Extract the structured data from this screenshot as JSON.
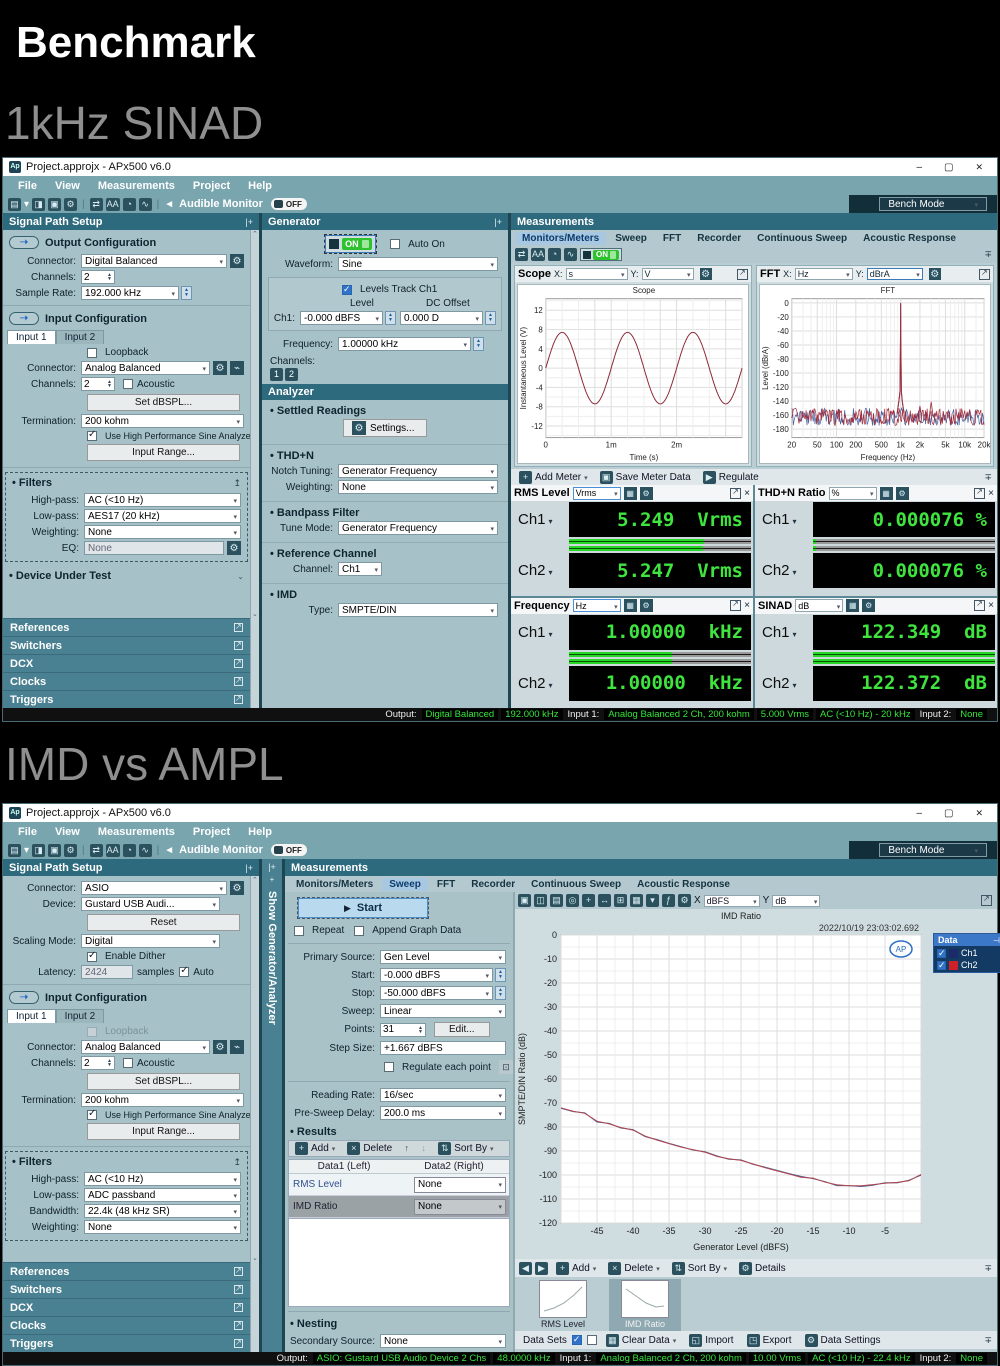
{
  "page": {
    "title": "Benchmark",
    "heading1": "1kHz SINAD",
    "heading2": "IMD vs AMPL"
  },
  "icons": {
    "wintool": [
      {
        "text": "▤",
        "name": "new-project-icon",
        "cls": "ti"
      },
      {
        "text": "▾",
        "name": "chevron-down-icon",
        "cls": "tiplain"
      },
      {
        "text": "◨",
        "name": "open-project-icon",
        "cls": "ti"
      },
      {
        "text": "▣",
        "name": "save-project-icon",
        "cls": "ti"
      },
      {
        "text": "⚙",
        "name": "settings-icon",
        "cls": "ti"
      },
      {
        "text": "|",
        "name": "separator",
        "cls": "sep"
      },
      {
        "text": "⇄",
        "name": "signal-path-icon",
        "cls": "ti"
      },
      {
        "text": "AA",
        "name": "sequence-icon",
        "cls": "ti"
      },
      {
        "text": "◔",
        "name": "clock-icon",
        "cls": "ti"
      },
      {
        "text": "∿",
        "name": "monitors-icon",
        "cls": "ti"
      },
      {
        "text": "|",
        "name": "separator",
        "cls": "sep"
      },
      {
        "text": "◄",
        "name": "speaker-icon",
        "cls": "tiplain"
      }
    ],
    "meastool": [
      {
        "text": "⇄",
        "name": "signal-path-icon",
        "cls": "ti"
      },
      {
        "text": "AA",
        "name": "sequence-icon",
        "cls": "ti"
      },
      {
        "text": "◔",
        "name": "clock-icon",
        "cls": "ti"
      },
      {
        "text": "∿",
        "name": "monitors-icon",
        "cls": "ti"
      }
    ],
    "graphtool": [
      {
        "text": "▣",
        "name": "save-graph-icon",
        "cls": "ti"
      },
      {
        "text": "◫",
        "name": "copy-graph-icon",
        "cls": "ti"
      },
      {
        "text": "▤",
        "name": "print-icon",
        "cls": "ti"
      },
      {
        "text": "◎",
        "name": "zoom-icon",
        "cls": "ti"
      },
      {
        "text": "+",
        "name": "pan-icon",
        "cls": "ti"
      },
      {
        "text": "↔",
        "name": "fit-icon",
        "cls": "ti"
      },
      {
        "text": "⊞",
        "name": "axes-icon",
        "cls": "ti"
      },
      {
        "text": "▦",
        "name": "data-table-icon",
        "cls": "ti"
      },
      {
        "text": "▾",
        "name": "cursors-icon",
        "cls": "ti"
      },
      {
        "text": "ƒ",
        "name": "function-icon",
        "cls": "ti"
      },
      {
        "text": "⚙",
        "name": "graph-settings-icon",
        "cls": "ti"
      }
    ],
    "nav": [
      {
        "text": "◀",
        "name": "first-result-icon",
        "cls": "ti"
      },
      {
        "text": "▶",
        "name": "last-result-icon",
        "cls": "ti"
      }
    ]
  },
  "w1": {
    "title": "Project.approjx - APx500 v6.0",
    "menus": [
      "File",
      "View",
      "Measurements",
      "Project",
      "Help"
    ],
    "tb": {
      "audible": "Audible Monitor",
      "off": "OFF",
      "bench": "Bench Mode"
    },
    "sps": {
      "header": "Signal Path Setup",
      "out_title": "Output Configuration",
      "connector_l": "Connector:",
      "connector_v": "Digital Balanced",
      "channels_l": "Channels:",
      "channels_v": "2",
      "samplerate_l": "Sample Rate:",
      "samplerate_v": "192.000 kHz",
      "in_title": "Input Configuration",
      "tab1": "Input 1",
      "tab2": "Input 2",
      "loopback": "Loopback",
      "in_connector_l": "Connector:",
      "in_connector_v": "Analog Balanced",
      "in_channels_l": "Channels:",
      "in_channels_v": "2",
      "acoustic": "Acoustic",
      "set_dbspl": "Set dBSPL...",
      "termination_l": "Termination:",
      "termination_v": "200 kohm",
      "hpsa": "Use High Performance Sine Analyzer",
      "input_range": "Input Range...",
      "filters": "Filters",
      "hp_l": "High-pass:",
      "hp_v": "AC (<10 Hz)",
      "lp_l": "Low-pass:",
      "lp_v": "AES17 (20 kHz)",
      "wt_l": "Weighting:",
      "wt_v": "None",
      "eq_l": "EQ:",
      "eq_v": "None",
      "dut": "Device Under Test",
      "acc": [
        "References",
        "Switchers",
        "DCX",
        "Clocks",
        "Triggers"
      ]
    },
    "gen": {
      "header": "Generator",
      "on": "ON",
      "auto_on": "Auto On",
      "waveform_l": "Waveform:",
      "waveform_v": "Sine",
      "levels_track": "Levels Track Ch1",
      "level_h": "Level",
      "dc_h": "DC Offset",
      "ch1_l": "Ch1:",
      "ch1_level": "-0.000 dBFS",
      "ch1_dc": "0.000 D",
      "freq_l": "Frequency:",
      "freq_v": "1.00000 kHz",
      "channels_l": "Channels:",
      "chb": [
        "1",
        "2"
      ],
      "analyzer": "Analyzer",
      "settled": "Settled Readings",
      "settings": "Settings...",
      "thdn": "THD+N",
      "notch_l": "Notch Tuning:",
      "notch_v": "Generator Frequency",
      "wt_l": "Weighting:",
      "wt_v": "None",
      "bandpass": "Bandpass Filter",
      "tune_l": "Tune Mode:",
      "tune_v": "Generator Frequency",
      "refch": "Reference Channel",
      "chan_l": "Channel:",
      "chan_v": "Ch1",
      "imd": "IMD",
      "type_l": "Type:",
      "type_v": "SMPTE/DIN"
    },
    "meas": {
      "header": "Measurements",
      "tabs": [
        {
          "text": "Monitors/Meters",
          "active": true,
          "name": "tab-monitors-meters"
        },
        {
          "text": "Sweep",
          "name": "tab-sweep"
        },
        {
          "text": "FFT",
          "name": "tab-fft"
        },
        {
          "text": "Recorder",
          "name": "tab-recorder"
        },
        {
          "text": "Continuous Sweep",
          "name": "tab-continuous-sweep"
        },
        {
          "text": "Acoustic Response",
          "name": "tab-acoustic-response"
        }
      ],
      "on": "ON",
      "scope": {
        "name": "Scope",
        "x_l": "X:",
        "x_v": "s",
        "y_l": "Y:",
        "y_v": "V"
      },
      "fft": {
        "name": "FFT",
        "x_l": "X:",
        "x_v": "Hz",
        "y_l": "Y:",
        "y_v": "dBrA"
      },
      "mb": {
        "add": "Add Meter",
        "save": "Save Meter Data",
        "regulate": "Regulate"
      },
      "meters": [
        {
          "title": "RMS Level",
          "unit": "Vrms",
          "ch1": "Ch1",
          "ch2": "Ch2",
          "v1": "5.249  Vrms",
          "v2": "5.247  Vrms",
          "bar1": 0.74,
          "bar2": 0.735
        },
        {
          "title": "THD+N Ratio",
          "unit": "%",
          "ch1": "Ch1",
          "ch2": "Ch2",
          "v1": "0.000076 %",
          "v2": "0.000076 %",
          "bar1": 0.015,
          "bar2": 0.015
        },
        {
          "title": "Frequency",
          "unit": "Hz",
          "ch1": "Ch1",
          "ch2": "Ch2",
          "v1": "1.00000  kHz",
          "v2": "1.00000  kHz",
          "bar1": 0.565,
          "bar2": 0.565
        },
        {
          "title": "SINAD",
          "unit": "dB",
          "ch1": "Ch1",
          "ch2": "Ch2",
          "v1": "122.349  dB",
          "v2": "122.372  dB",
          "bar1": 1,
          "bar2": 1
        }
      ]
    },
    "status": [
      {
        "text": "Output:",
        "cls": "slbl",
        "name": "status-output-label"
      },
      {
        "text": "Digital Balanced",
        "cls": "chip",
        "name": "status-chip"
      },
      {
        "text": "192.000 kHz",
        "cls": "chip",
        "name": "status-chip"
      },
      {
        "text": "Input 1:",
        "cls": "slbl",
        "name": "status-input1-label"
      },
      {
        "text": "Analog Balanced 2 Ch, 200 kohm",
        "cls": "chip",
        "name": "status-chip"
      },
      {
        "text": "5.000 Vrms",
        "cls": "chip",
        "name": "status-chip"
      },
      {
        "text": "AC (<10 Hz) - 20 kHz",
        "cls": "chip",
        "name": "status-chip"
      },
      {
        "text": "Input 2:",
        "cls": "slbl",
        "name": "status-input2-label"
      },
      {
        "text": "None",
        "cls": "chip",
        "name": "status-chip"
      }
    ]
  },
  "w2": {
    "title": "Project.approjx - APx500 v6.0",
    "menus": [
      "File",
      "View",
      "Measurements",
      "Project",
      "Help"
    ],
    "tb": {
      "audible": "Audible Monitor",
      "off": "OFF",
      "bench": "Bench Mode"
    },
    "strip": "Show Generator/Analyzer",
    "sps": {
      "header": "Signal Path Setup",
      "connector_l": "Connector:",
      "connector_v": "ASIO",
      "device_l": "Device:",
      "device_v": "Gustard USB Audi...",
      "reset": "Reset",
      "scaling_l": "Scaling Mode:",
      "scaling_v": "Digital",
      "dither": "Enable Dither",
      "latency_l": "Latency:",
      "latency_v": "2424",
      "samples": "samples",
      "auto": "Auto",
      "in_title": "Input Configuration",
      "tab1": "Input 1",
      "tab2": "Input 2",
      "loopback": "Loopback",
      "in_connector_l": "Connector:",
      "in_connector_v": "Analog Balanced",
      "in_channels_l": "Channels:",
      "in_channels_v": "2",
      "acoustic": "Acoustic",
      "set_dbspl": "Set dBSPL...",
      "termination_l": "Termination:",
      "termination_v": "200 kohm",
      "hpsa": "Use High Performance Sine Analyzer",
      "input_range": "Input Range...",
      "filters": "Filters",
      "hp_l": "High-pass:",
      "hp_v": "AC (<10 Hz)",
      "lp_l": "Low-pass:",
      "lp_v": "ADC passband",
      "bw_l": "Bandwidth:",
      "bw_v": "22.4k (48 kHz SR)",
      "wt_l": "Weighting:",
      "wt_v": "None",
      "acc": [
        "References",
        "Switchers",
        "DCX",
        "Clocks",
        "Triggers"
      ]
    },
    "meas": {
      "header": "Measurements",
      "tabs": [
        {
          "text": "Monitors/Meters",
          "name": "tab-monitors-meters"
        },
        {
          "text": "Sweep",
          "active": true,
          "name": "tab-sweep"
        },
        {
          "text": "FFT",
          "name": "tab-fft"
        },
        {
          "text": "Recorder",
          "name": "tab-recorder"
        },
        {
          "text": "Continuous Sweep",
          "name": "tab-continuous-sweep"
        },
        {
          "text": "Acoustic Response",
          "name": "tab-acoustic-response"
        }
      ],
      "sw": {
        "start": "Start",
        "repeat": "Repeat",
        "append": "Append Graph Data",
        "primary_l": "Primary Source:",
        "primary_v": "Gen Level",
        "start_l": "Start:",
        "start_v": "-0.000 dBFS",
        "stop_l": "Stop:",
        "stop_v": "-50.000 dBFS",
        "sweep_l": "Sweep:",
        "sweep_v": "Linear",
        "points_l": "Points:",
        "points_v": "31",
        "edit": "Edit...",
        "step_l": "Step Size:",
        "step_v": "+1.667 dBFS",
        "regulate": "Regulate each point",
        "rate_l": "Reading Rate:",
        "rate_v": "16/sec",
        "delay_l": "Pre-Sweep Delay:",
        "delay_v": "200.0 ms",
        "results": "Results",
        "add": "Add",
        "del": "Delete",
        "sortby": "Sort By",
        "col1": "Data1 (Left)",
        "col2": "Data2 (Right)",
        "rows": [
          {
            "name": "RMS Level",
            "right": "None"
          },
          {
            "name": "IMD Ratio",
            "right": "None"
          }
        ],
        "nesting": "Nesting",
        "secondary_l": "Secondary Source:",
        "secondary_v": "None"
      },
      "graph": {
        "x_l": "X",
        "x_v": "dBFS",
        "y_l": "Y",
        "y_v": "dB"
      },
      "bottom": {
        "add": "Add",
        "del": "Delete",
        "sortby": "Sort By",
        "details": "Details",
        "thumb1": "RMS Level",
        "thumb2": "IMD Ratio",
        "datasets": "Data Sets",
        "clear": "Clear Data",
        "import": "Import",
        "export": "Export",
        "settings": "Data Settings"
      }
    },
    "status": [
      {
        "text": "Output:",
        "cls": "slbl",
        "name": "status-output-label"
      },
      {
        "text": "ASIO: Gustard USB Audio Device 2 Chs",
        "cls": "chip",
        "name": "status-chip"
      },
      {
        "text": "48.0000 kHz",
        "cls": "chip",
        "name": "status-chip"
      },
      {
        "text": "Input 1:",
        "cls": "slbl",
        "name": "status-input1-label"
      },
      {
        "text": "Analog Balanced 2 Ch, 200 kohm",
        "cls": "chip",
        "name": "status-chip"
      },
      {
        "text": "10.00 Vrms",
        "cls": "chip",
        "name": "status-chip"
      },
      {
        "text": "AC (<10 Hz) - 22.4 kHz",
        "cls": "chip",
        "name": "status-chip"
      },
      {
        "text": "Input 2:",
        "cls": "slbl",
        "name": "status-input2-label"
      },
      {
        "text": "None",
        "cls": "chip",
        "name": "status-chip"
      }
    ]
  },
  "chart_data": [
    {
      "id": "scope",
      "type": "line",
      "title": "Scope",
      "xlabel": "Time (s)",
      "ylabel": "Instantaneous Level (V)",
      "xlim": [
        0,
        0.003
      ],
      "ylim": [
        -14.4,
        14.4
      ],
      "yticks": [
        12,
        8,
        4,
        0,
        -4,
        -8,
        -12
      ],
      "xticks": [
        {
          "v": 0,
          "label": "0"
        },
        {
          "v": 0.001,
          "label": "1m"
        },
        {
          "v": 0.002,
          "label": "2m"
        }
      ],
      "waveform": {
        "kind": "sine",
        "amplitude_v": 7.42,
        "frequency_hz": 1000,
        "cycles_shown": 3
      },
      "color": "#8c2a38",
      "grid": true
    },
    {
      "id": "fft",
      "type": "line",
      "title": "FFT",
      "xlabel": "Frequency (Hz)",
      "ylabel": "Level (dBrA)",
      "xscale": "log",
      "xlim": [
        20,
        20000
      ],
      "ylim": [
        -192,
        6
      ],
      "yticks": [
        0,
        -20,
        -40,
        -60,
        -80,
        -100,
        -120,
        -140,
        -160,
        -180
      ],
      "xticks": [
        {
          "v": 20,
          "label": "20"
        },
        {
          "v": 50,
          "label": "50"
        },
        {
          "v": 100,
          "label": "100"
        },
        {
          "v": 200,
          "label": "200"
        },
        {
          "v": 500,
          "label": "500"
        },
        {
          "v": 1000,
          "label": "1k"
        },
        {
          "v": 2000,
          "label": "2k"
        },
        {
          "v": 5000,
          "label": "5k"
        },
        {
          "v": 10000,
          "label": "10k"
        },
        {
          "v": 20000,
          "label": "20k"
        }
      ],
      "noise_floor_db": -160,
      "peak": {
        "freq_hz": 1000,
        "level_db": 0
      },
      "series": [
        {
          "name": "Ch1"
        },
        {
          "name": "Ch2"
        }
      ],
      "colors": [
        "#47609e",
        "#a42a38"
      ],
      "grid": true
    },
    {
      "id": "imd",
      "type": "line",
      "title": "IMD Ratio",
      "timestamp": "2022/10/19 23:03:02.692",
      "logo": "AP",
      "xlabel": "Generator Level (dBFS)",
      "ylabel": "SMPTE/DIN Ratio (dB)",
      "xlim": [
        -50,
        0
      ],
      "ylim": [
        -120,
        0
      ],
      "xticks": [
        -45,
        -40,
        -35,
        -30,
        -25,
        -20,
        -15,
        -10,
        -5
      ],
      "yticks": [
        0,
        -10,
        -20,
        -30,
        -40,
        -50,
        -60,
        -70,
        -80,
        -90,
        -100,
        -110,
        -120
      ],
      "legend_title": "Data",
      "legend_colors": [
        "#1b2a6b",
        "#cc2128"
      ],
      "x": [
        -50,
        -48.3,
        -46.7,
        -45,
        -43.3,
        -41.7,
        -40,
        -38.3,
        -36.7,
        -35,
        -33.3,
        -31.7,
        -30,
        -28.3,
        -26.7,
        -25,
        -23.3,
        -21.7,
        -20,
        -18.3,
        -16.7,
        -15,
        -13.3,
        -11.7,
        -10,
        -8.3,
        -6.7,
        -5,
        -3.3,
        -1.7,
        0
      ],
      "series": [
        {
          "name": "Ch1",
          "values": [
            -72.2,
            -73.6,
            -74.1,
            -77.9,
            -78.5,
            -80.4,
            -81.1,
            -84.0,
            -85.2,
            -86.8,
            -88.2,
            -89.6,
            -90.3,
            -92.1,
            -93.4,
            -93.7,
            -95.6,
            -96.7,
            -98.1,
            -99.4,
            -100.6,
            -101.5,
            -102.8,
            -104.4,
            -104.4,
            -104.8,
            -104.3,
            -103.2,
            -103.3,
            -102.2,
            -100.1
          ]
        },
        {
          "name": "Ch2",
          "values": [
            -72.0,
            -73.4,
            -74.3,
            -77.6,
            -78.7,
            -80.2,
            -81.3,
            -83.8,
            -85.4,
            -86.9,
            -88.4,
            -89.4,
            -90.5,
            -92.3,
            -93.2,
            -93.9,
            -95.4,
            -96.9,
            -98.3,
            -99.6,
            -100.9,
            -101.3,
            -103.0,
            -104.1,
            -104.5,
            -104.5,
            -104.0,
            -103.4,
            -103.1,
            -102.4,
            -99.8
          ]
        }
      ],
      "colors": [
        "#4a5f94",
        "#b2454e"
      ],
      "grid": true
    }
  ]
}
